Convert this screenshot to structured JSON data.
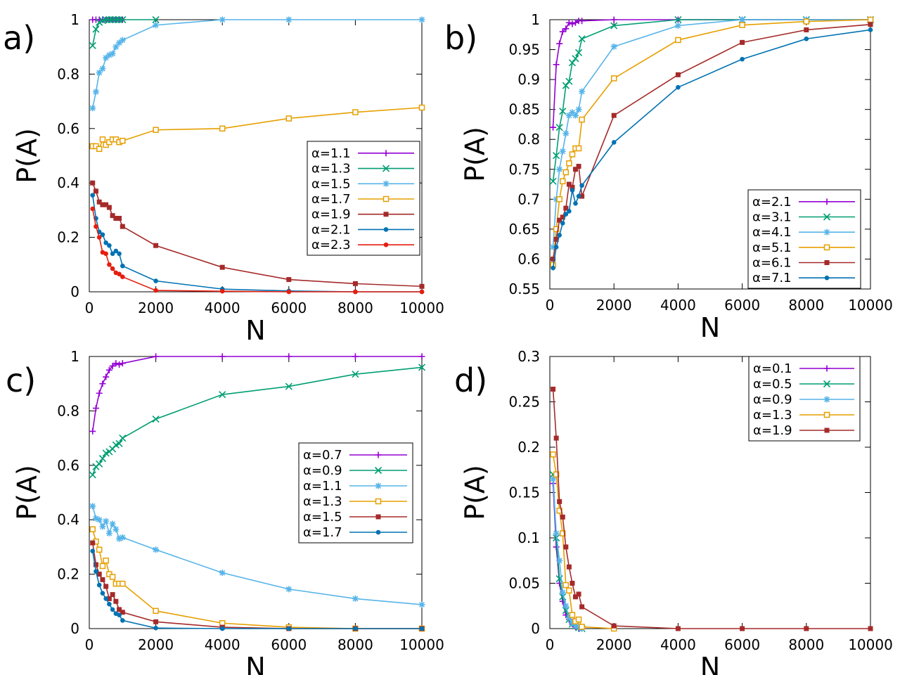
{
  "chart_data": [
    {
      "panel": "a)",
      "type": "line",
      "xlabel": "N",
      "ylabel": "P(A)",
      "xlim": [
        0,
        10000
      ],
      "ylim": [
        0,
        1
      ],
      "xticks": [
        0,
        2000,
        4000,
        6000,
        8000,
        10000
      ],
      "yticks": [
        0,
        0.2,
        0.4,
        0.6,
        0.8,
        1
      ],
      "ytick_labels": [
        "0",
        "0.2",
        "0.4",
        "0.6",
        "0.8",
        "1"
      ],
      "legend_position": "right-middle",
      "series": [
        {
          "name": "α=1.1",
          "color": "#9400d3",
          "marker": "plus",
          "x": [
            100,
            200,
            300,
            400,
            500,
            600,
            700,
            800,
            900,
            1000
          ],
          "y": [
            1.0,
            1.0,
            1.0,
            1.0,
            1.0,
            1.0,
            1.0,
            1.0,
            1.0,
            1.0
          ]
        },
        {
          "name": "α=1.3",
          "color": "#009e73",
          "marker": "cross",
          "x": [
            100,
            200,
            300,
            400,
            500,
            600,
            700,
            800,
            900,
            1000,
            2000
          ],
          "y": [
            0.905,
            0.965,
            0.99,
            0.997,
            1.0,
            1.0,
            1.0,
            1.0,
            1.0,
            1.0,
            1.0
          ]
        },
        {
          "name": "α=1.5",
          "color": "#56b4e9",
          "marker": "star",
          "x": [
            100,
            200,
            300,
            400,
            500,
            600,
            700,
            800,
            900,
            1000,
            2000,
            4000,
            6000,
            10000
          ],
          "y": [
            0.675,
            0.735,
            0.805,
            0.82,
            0.86,
            0.87,
            0.875,
            0.9,
            0.915,
            0.925,
            0.98,
            1.0,
            1.0,
            1.0
          ]
        },
        {
          "name": "α=1.7",
          "color": "#e69f00",
          "marker": "square-open",
          "x": [
            100,
            200,
            300,
            400,
            500,
            600,
            700,
            800,
            900,
            1000,
            2000,
            4000,
            6000,
            8000,
            10000
          ],
          "y": [
            0.535,
            0.535,
            0.525,
            0.56,
            0.54,
            0.55,
            0.56,
            0.56,
            0.55,
            0.555,
            0.595,
            0.6,
            0.637,
            0.66,
            0.677
          ]
        },
        {
          "name": "α=1.9",
          "color": "#a52a2a",
          "marker": "square-filled",
          "x": [
            100,
            200,
            300,
            400,
            500,
            600,
            700,
            800,
            900,
            1000,
            2000,
            4000,
            6000,
            8000,
            10000
          ],
          "y": [
            0.4,
            0.37,
            0.33,
            0.32,
            0.32,
            0.31,
            0.28,
            0.27,
            0.27,
            0.24,
            0.17,
            0.09,
            0.045,
            0.03,
            0.02
          ]
        },
        {
          "name": "α=2.1",
          "color": "#0072b2",
          "marker": "circle",
          "x": [
            100,
            200,
            300,
            400,
            500,
            600,
            700,
            800,
            900,
            1000,
            2000,
            4000,
            6000,
            8000,
            10000
          ],
          "y": [
            0.355,
            0.27,
            0.22,
            0.21,
            0.18,
            0.17,
            0.14,
            0.15,
            0.14,
            0.095,
            0.04,
            0.01,
            0.003,
            0.0,
            0.0
          ]
        },
        {
          "name": "α=2.3",
          "color": "#e51e10",
          "marker": "circle",
          "x": [
            100,
            200,
            300,
            400,
            500,
            600,
            700,
            800,
            900,
            1000,
            2000,
            4000,
            6000,
            8000,
            10000
          ],
          "y": [
            0.305,
            0.24,
            0.2,
            0.145,
            0.14,
            0.1,
            0.085,
            0.07,
            0.065,
            0.055,
            0.005,
            0.002,
            0.0,
            0.0,
            0.0
          ]
        }
      ]
    },
    {
      "panel": "b)",
      "type": "line",
      "xlabel": "N",
      "ylabel": "P(A)",
      "xlim": [
        0,
        10000
      ],
      "ylim": [
        0.55,
        1
      ],
      "xticks": [
        0,
        2000,
        4000,
        6000,
        8000,
        10000
      ],
      "yticks": [
        0.55,
        0.6,
        0.65,
        0.7,
        0.75,
        0.8,
        0.85,
        0.9,
        0.95,
        1
      ],
      "ytick_labels": [
        "0.55",
        "0.6",
        "0.65",
        "0.7",
        "0.75",
        "0.8",
        "0.85",
        "0.9",
        "0.95",
        "1"
      ],
      "legend_position": "bottom-right",
      "series": [
        {
          "name": "α=2.1",
          "color": "#9400d3",
          "marker": "plus",
          "x": [
            100,
            200,
            300,
            400,
            500,
            600,
            700,
            800,
            900,
            1000,
            2000,
            4000,
            6000,
            8000,
            10000
          ],
          "y": [
            0.82,
            0.925,
            0.96,
            0.98,
            0.985,
            0.995,
            0.993,
            0.995,
            0.998,
            0.998,
            1.0,
            1.0,
            1.0,
            1.0,
            1.0
          ]
        },
        {
          "name": "α=3.1",
          "color": "#009e73",
          "marker": "cross",
          "x": [
            100,
            200,
            300,
            400,
            500,
            600,
            700,
            800,
            900,
            1000,
            2000,
            4000,
            6000,
            8000,
            10000
          ],
          "y": [
            0.73,
            0.773,
            0.82,
            0.847,
            0.89,
            0.897,
            0.928,
            0.935,
            0.945,
            0.968,
            0.99,
            1.0,
            1.0,
            1.0,
            1.0
          ]
        },
        {
          "name": "α=4.1",
          "color": "#56b4e9",
          "marker": "star",
          "x": [
            100,
            200,
            300,
            400,
            500,
            600,
            700,
            800,
            900,
            1000,
            2000,
            4000,
            6000,
            8000,
            10000
          ],
          "y": [
            0.62,
            0.7,
            0.75,
            0.78,
            0.81,
            0.84,
            0.845,
            0.84,
            0.85,
            0.88,
            0.955,
            0.99,
            1.0,
            1.0,
            1.0
          ]
        },
        {
          "name": "α=5.1",
          "color": "#e69f00",
          "marker": "square-open",
          "x": [
            100,
            200,
            300,
            400,
            500,
            600,
            700,
            800,
            900,
            1000,
            2000,
            4000,
            6000,
            8000,
            10000
          ],
          "y": [
            0.59,
            0.65,
            0.7,
            0.73,
            0.745,
            0.76,
            0.775,
            0.785,
            0.785,
            0.833,
            0.902,
            0.966,
            0.991,
            0.997,
            1.0
          ]
        },
        {
          "name": "α=6.1",
          "color": "#a52a2a",
          "marker": "square-filled",
          "x": [
            100,
            200,
            300,
            400,
            500,
            600,
            700,
            800,
            900,
            1000,
            2000,
            4000,
            6000,
            8000,
            10000
          ],
          "y": [
            0.6,
            0.633,
            0.665,
            0.67,
            0.685,
            0.725,
            0.72,
            0.75,
            0.755,
            0.705,
            0.84,
            0.908,
            0.962,
            0.983,
            0.992
          ]
        },
        {
          "name": "α=7.1",
          "color": "#0072b2",
          "marker": "circle",
          "x": [
            100,
            200,
            300,
            400,
            500,
            600,
            700,
            800,
            900,
            1000,
            2000,
            4000,
            6000,
            8000,
            10000
          ],
          "y": [
            0.585,
            0.62,
            0.64,
            0.66,
            0.675,
            0.68,
            0.715,
            0.693,
            0.705,
            0.723,
            0.795,
            0.887,
            0.934,
            0.968,
            0.983
          ]
        }
      ]
    },
    {
      "panel": "c)",
      "type": "line",
      "xlabel": "N",
      "ylabel": "P(A)",
      "xlim": [
        0,
        10000
      ],
      "ylim": [
        0,
        1
      ],
      "xticks": [
        0,
        2000,
        4000,
        6000,
        8000,
        10000
      ],
      "yticks": [
        0,
        0.2,
        0.4,
        0.6,
        0.8,
        1
      ],
      "ytick_labels": [
        "0",
        "0.2",
        "0.4",
        "0.6",
        "0.8",
        "1"
      ],
      "legend_position": "right-middle",
      "series": [
        {
          "name": "α=0.7",
          "color": "#9400d3",
          "marker": "plus",
          "x": [
            100,
            200,
            300,
            400,
            500,
            600,
            700,
            800,
            900,
            1000,
            2000,
            4000,
            6000,
            8000,
            10000
          ],
          "y": [
            0.725,
            0.81,
            0.865,
            0.9,
            0.925,
            0.95,
            0.965,
            0.975,
            0.97,
            0.975,
            1.0,
            1.0,
            1.0,
            1.0,
            1.0
          ]
        },
        {
          "name": "α=0.9",
          "color": "#009e73",
          "marker": "cross",
          "x": [
            100,
            200,
            300,
            400,
            500,
            600,
            700,
            800,
            900,
            1000,
            2000,
            4000,
            6000,
            8000,
            10000
          ],
          "y": [
            0.565,
            0.595,
            0.605,
            0.625,
            0.645,
            0.65,
            0.66,
            0.675,
            0.68,
            0.7,
            0.77,
            0.86,
            0.89,
            0.935,
            0.96
          ]
        },
        {
          "name": "α=1.1",
          "color": "#56b4e9",
          "marker": "star",
          "x": [
            100,
            200,
            300,
            400,
            500,
            600,
            700,
            800,
            900,
            1000,
            2000,
            4000,
            6000,
            8000,
            10000
          ],
          "y": [
            0.45,
            0.405,
            0.4,
            0.375,
            0.395,
            0.35,
            0.385,
            0.365,
            0.33,
            0.335,
            0.29,
            0.205,
            0.145,
            0.11,
            0.088
          ]
        },
        {
          "name": "α=1.3",
          "color": "#e69f00",
          "marker": "square-open",
          "x": [
            100,
            200,
            300,
            400,
            500,
            600,
            700,
            800,
            900,
            1000,
            2000,
            4000,
            6000,
            8000,
            10000
          ],
          "y": [
            0.365,
            0.32,
            0.29,
            0.23,
            0.25,
            0.2,
            0.19,
            0.165,
            0.165,
            0.165,
            0.065,
            0.02,
            0.005,
            0.0,
            0.0
          ]
        },
        {
          "name": "α=1.5",
          "color": "#a52a2a",
          "marker": "square-filled",
          "x": [
            100,
            200,
            300,
            400,
            500,
            600,
            700,
            800,
            900,
            1000,
            2000,
            4000,
            6000,
            8000,
            10000
          ],
          "y": [
            0.315,
            0.235,
            0.2,
            0.18,
            0.155,
            0.11,
            0.125,
            0.1,
            0.07,
            0.06,
            0.025,
            0.005,
            0.0,
            0.0,
            0.0
          ]
        },
        {
          "name": "α=1.7",
          "color": "#0072b2",
          "marker": "circle",
          "x": [
            100,
            200,
            300,
            400,
            500,
            600,
            700,
            800,
            900,
            1000,
            2000,
            4000,
            6000,
            8000,
            10000
          ],
          "y": [
            0.285,
            0.21,
            0.16,
            0.13,
            0.11,
            0.09,
            0.07,
            0.055,
            0.05,
            0.03,
            0.002,
            0.0,
            0.0,
            0.0,
            0.0
          ]
        }
      ]
    },
    {
      "panel": "d)",
      "type": "line",
      "xlabel": "N",
      "ylabel": "P(A)",
      "xlim": [
        0,
        10000
      ],
      "ylim": [
        0,
        0.3
      ],
      "xticks": [
        0,
        2000,
        4000,
        6000,
        8000,
        10000
      ],
      "yticks": [
        0,
        0.05,
        0.1,
        0.15,
        0.2,
        0.25,
        0.3
      ],
      "ytick_labels": [
        "0",
        "0.05",
        "0.1",
        "0.15",
        "0.2",
        "0.25",
        "0.3"
      ],
      "legend_position": "top-right",
      "series": [
        {
          "name": "α=0.1",
          "color": "#9400d3",
          "marker": "plus",
          "x": [
            100,
            200,
            300,
            400,
            500,
            600,
            700,
            800,
            900,
            1000
          ],
          "y": [
            0.16,
            0.09,
            0.05,
            0.03,
            0.015,
            0.01,
            0.005,
            0.002,
            0.0,
            0.0
          ]
        },
        {
          "name": "α=0.5",
          "color": "#009e73",
          "marker": "cross",
          "x": [
            100,
            200,
            300,
            400,
            500,
            600,
            700,
            800,
            900,
            1000
          ],
          "y": [
            0.17,
            0.1,
            0.055,
            0.035,
            0.02,
            0.01,
            0.005,
            0.003,
            0.001,
            0.0
          ]
        },
        {
          "name": "α=0.9",
          "color": "#56b4e9",
          "marker": "star",
          "x": [
            100,
            200,
            300,
            400,
            500,
            600,
            700,
            800,
            900,
            1000
          ],
          "y": [
            0.165,
            0.105,
            0.075,
            0.04,
            0.025,
            0.012,
            0.006,
            0.003,
            0.002,
            0.0
          ]
        },
        {
          "name": "α=1.3",
          "color": "#e69f00",
          "marker": "square-open",
          "x": [
            100,
            200,
            300,
            400,
            500,
            600,
            700,
            800,
            900,
            1000,
            2000
          ],
          "y": [
            0.192,
            0.17,
            0.13,
            0.105,
            0.048,
            0.042,
            0.015,
            0.008,
            0.01,
            0.002,
            0.0
          ]
        },
        {
          "name": "α=1.9",
          "color": "#a52a2a",
          "marker": "square-filled",
          "x": [
            100,
            200,
            300,
            400,
            500,
            600,
            700,
            800,
            900,
            1000,
            2000,
            4000,
            6000,
            8000,
            10000
          ],
          "y": [
            0.264,
            0.21,
            0.14,
            0.123,
            0.09,
            0.068,
            0.05,
            0.035,
            0.038,
            0.024,
            0.003,
            0.0,
            0.0,
            0.0,
            0.0
          ]
        }
      ]
    }
  ]
}
